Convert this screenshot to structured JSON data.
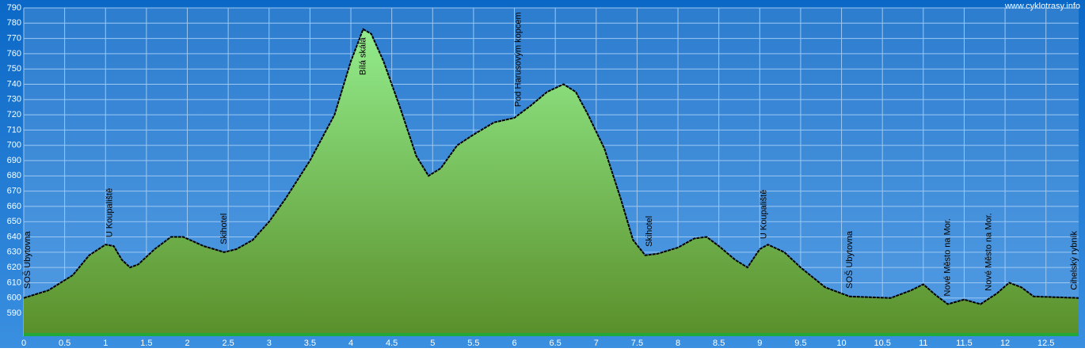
{
  "chart_data": {
    "type": "area",
    "watermark": "www.cyklotrasy.info",
    "x": [
      0,
      0.3,
      0.6,
      0.8,
      1.0,
      1.1,
      1.2,
      1.3,
      1.4,
      1.6,
      1.8,
      1.95,
      2.2,
      2.45,
      2.6,
      2.8,
      3.0,
      3.2,
      3.5,
      3.8,
      4.0,
      4.15,
      4.25,
      4.4,
      4.6,
      4.8,
      4.95,
      5.1,
      5.3,
      5.5,
      5.75,
      6.0,
      6.2,
      6.4,
      6.6,
      6.75,
      6.9,
      7.1,
      7.3,
      7.45,
      7.6,
      7.75,
      8.0,
      8.2,
      8.35,
      8.5,
      8.7,
      8.85,
      9.0,
      9.1,
      9.3,
      9.5,
      9.8,
      10.1,
      10.6,
      10.85,
      11.0,
      11.15,
      11.3,
      11.5,
      11.7,
      11.9,
      12.05,
      12.2,
      12.35,
      12.9
    ],
    "values": [
      600,
      605,
      615,
      628,
      635,
      634,
      625,
      620,
      622,
      632,
      640,
      640,
      634,
      630,
      632,
      638,
      650,
      665,
      690,
      720,
      755,
      776,
      773,
      755,
      725,
      693,
      680,
      685,
      700,
      707,
      715,
      718,
      726,
      735,
      740,
      735,
      720,
      698,
      665,
      638,
      628,
      629,
      633,
      639,
      640,
      634,
      625,
      620,
      632,
      635,
      630,
      620,
      607,
      601,
      600,
      605,
      609,
      602,
      596,
      599,
      596,
      603,
      610,
      607,
      601,
      600
    ],
    "color": "#000000",
    "xlim": [
      0,
      12.9
    ],
    "ylim": [
      575,
      790
    ],
    "xticks": [
      0,
      0.5,
      1,
      1.5,
      2,
      2.5,
      3,
      3.5,
      4,
      4.5,
      5,
      5.5,
      6,
      6.5,
      7,
      7.5,
      8,
      8.5,
      9,
      9.5,
      10,
      10.5,
      11,
      11.5,
      12,
      12.5
    ],
    "yticks": [
      590,
      600,
      610,
      620,
      630,
      640,
      650,
      660,
      670,
      680,
      690,
      700,
      710,
      720,
      730,
      740,
      750,
      760,
      770,
      780,
      790
    ],
    "grid": true,
    "annotations": [
      {
        "x": 0.05,
        "text": "SOŠ Ubytovna"
      },
      {
        "x": 1.05,
        "text": "U Koupaliště"
      },
      {
        "x": 2.45,
        "text": "Skihotel"
      },
      {
        "x": 4.15,
        "text": "Bílá skála"
      },
      {
        "x": 6.05,
        "text": "Pod Harusovým kopcem"
      },
      {
        "x": 7.65,
        "text": "Skihotel"
      },
      {
        "x": 9.05,
        "text": "U Koupaliště"
      },
      {
        "x": 10.1,
        "text": "SOŠ Ubytovna"
      },
      {
        "x": 11.3,
        "text": "Nové Město na Mor."
      },
      {
        "x": 11.8,
        "text": "Nové Město na Mor."
      },
      {
        "x": 12.85,
        "text": "Cihelský rybník"
      }
    ]
  }
}
